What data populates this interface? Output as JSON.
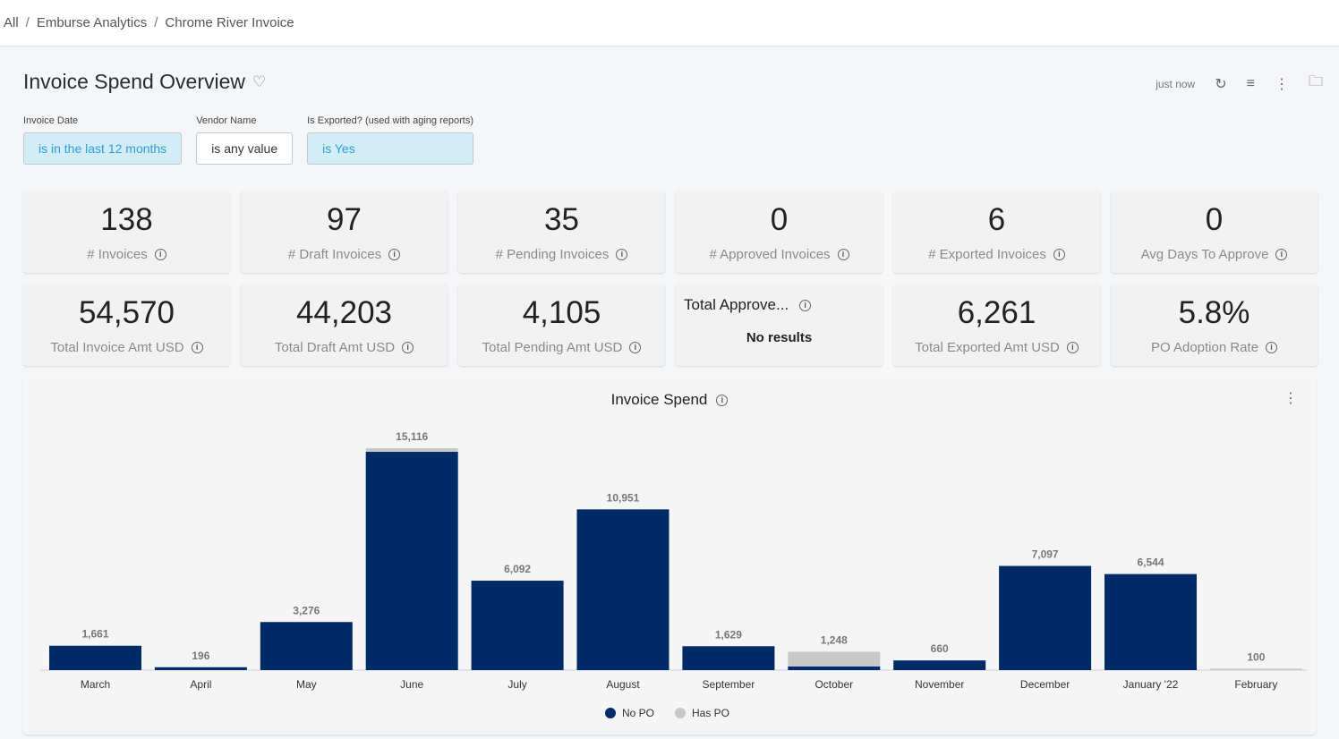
{
  "breadcrumb": [
    "All",
    "Emburse Analytics",
    "Chrome River Invoice"
  ],
  "page": {
    "title": "Invoice Spend Overview",
    "updated": "just now"
  },
  "filters": [
    {
      "label": "Invoice Date",
      "value": "is in the last 12 months",
      "active": true
    },
    {
      "label": "Vendor Name",
      "value": "is any value",
      "active": false
    },
    {
      "label": "Is Exported? (used with aging reports)",
      "value": "is Yes",
      "active": true
    }
  ],
  "tiles": [
    {
      "value": "138",
      "label": "# Invoices"
    },
    {
      "value": "97",
      "label": "# Draft Invoices"
    },
    {
      "value": "35",
      "label": "# Pending Invoices"
    },
    {
      "value": "0",
      "label": "# Approved Invoices"
    },
    {
      "value": "6",
      "label": "# Exported Invoices"
    },
    {
      "value": "0",
      "label": "Avg Days To Approve"
    },
    {
      "value": "54,570",
      "label": "Total Invoice Amt USD"
    },
    {
      "value": "44,203",
      "label": "Total Draft Amt USD"
    },
    {
      "value": "4,105",
      "label": "Total Pending Amt USD"
    },
    {
      "title": "Total Approve...",
      "no_results": "No results"
    },
    {
      "value": "6,261",
      "label": "Total Exported Amt USD"
    },
    {
      "value": "5.8%",
      "label": "PO Adoption Rate"
    }
  ],
  "chart_data": {
    "type": "bar",
    "stacked": true,
    "title": "Invoice Spend",
    "categories": [
      "March",
      "April",
      "May",
      "June",
      "July",
      "August",
      "September",
      "October",
      "November",
      "December",
      "January '22",
      "February"
    ],
    "totals": [
      "1,661",
      "196",
      "3,276",
      "15,116",
      "6,092",
      "10,951",
      "1,629",
      "1,248",
      "660",
      "7,097",
      "6,544",
      "100"
    ],
    "series": [
      {
        "name": "No PO",
        "color": "#002b67",
        "values": [
          1661,
          196,
          3276,
          14871,
          6092,
          10951,
          1629,
          250,
          660,
          7097,
          6544,
          0
        ]
      },
      {
        "name": "Has PO",
        "color": "#c8c8c8",
        "values": [
          0,
          0,
          0,
          245,
          0,
          0,
          0,
          998,
          0,
          0,
          0,
          100
        ]
      }
    ],
    "ylim": [
      0,
      15116
    ],
    "legend": "bottom"
  }
}
